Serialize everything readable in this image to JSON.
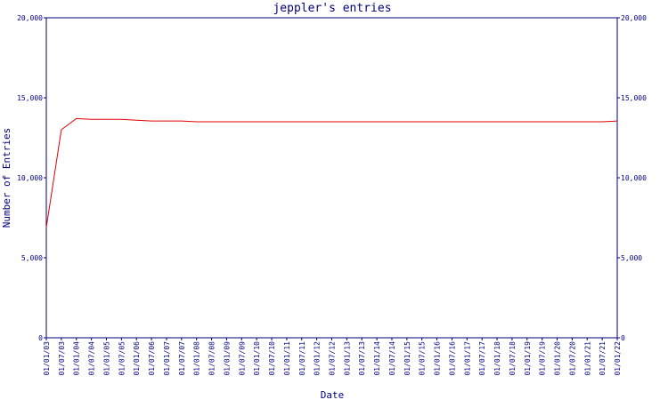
{
  "chart_data": {
    "type": "line",
    "title": "jeppler's entries",
    "x_label": "Date",
    "y_label": "Number of Entries",
    "categories": [
      "01/01/03",
      "01/07/03",
      "01/01/04",
      "01/07/04",
      "01/01/05",
      "01/07/05",
      "01/01/06",
      "01/07/06",
      "01/01/07",
      "01/07/07",
      "01/01/08",
      "01/07/08",
      "01/01/09",
      "01/07/09",
      "01/01/10",
      "01/07/10",
      "01/01/11",
      "01/07/11",
      "01/01/12",
      "01/07/12",
      "01/01/13",
      "01/07/13",
      "01/01/14",
      "01/07/14",
      "01/01/15",
      "01/07/15",
      "01/01/16",
      "01/07/16",
      "01/01/17",
      "01/07/17",
      "01/01/18",
      "01/07/18",
      "01/01/19",
      "01/07/19",
      "01/01/20",
      "01/07/20",
      "01/01/21",
      "01/07/21",
      "01/01/22"
    ],
    "series": [
      {
        "color": "#e00000",
        "values": [
          6900,
          13000,
          13700,
          13650,
          13650,
          13650,
          13600,
          13550,
          13550,
          13550,
          13500,
          13500,
          13500,
          13500,
          13500,
          13500,
          13500,
          13500,
          13500,
          13500,
          13500,
          13500,
          13500,
          13500,
          13500,
          13500,
          13500,
          13500,
          13500,
          13500,
          13500,
          13500,
          13500,
          13500,
          13500,
          13500,
          13500,
          13500,
          13550
        ]
      }
    ],
    "ylim": [
      0,
      20000
    ],
    "yticks": [
      0,
      {
        "value": 5000,
        "label": "5,000"
      },
      {
        "value": 10000,
        "label": "10,000"
      },
      {
        "value": 15000,
        "label": "15,000"
      },
      {
        "value": 20000,
        "label": "20,000"
      }
    ],
    "y2lim": [
      0,
      20000
    ],
    "y2ticks": [
      0,
      {
        "value": 5000,
        "label": "5,000"
      },
      {
        "value": 10000,
        "label": "10,000"
      },
      {
        "value": 15000,
        "label": "15,000"
      },
      {
        "value": 20000,
        "label": "20,000"
      }
    ]
  }
}
